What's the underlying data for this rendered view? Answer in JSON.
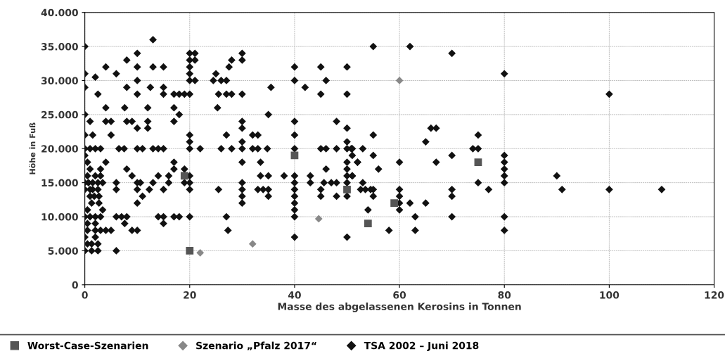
{
  "chart_data": {
    "type": "scatter",
    "xlabel": "Masse des abgelassenen Kerosins in Tonnen",
    "ylabel": "Höhe in Fuß",
    "xlim": [
      0,
      120
    ],
    "xticks": [
      0,
      20,
      40,
      60,
      80,
      100,
      120
    ],
    "ylim": [
      0,
      40000
    ],
    "yticks": [
      {
        "value": 0,
        "label": "0"
      },
      {
        "value": 5000,
        "label": "5.000"
      },
      {
        "value": 10000,
        "label": "10.000"
      },
      {
        "value": 15000,
        "label": "15.000"
      },
      {
        "value": 20000,
        "label": "20.000"
      },
      {
        "value": 25000,
        "label": "25.000"
      },
      {
        "value": 30000,
        "label": "30.000"
      },
      {
        "value": 35000,
        "label": "35.000"
      },
      {
        "value": 40000,
        "label": "40.000"
      }
    ],
    "grid": true,
    "legend": "bottom",
    "series": [
      {
        "name": "Worst-Case-Szenarien",
        "color": "#555555",
        "marker": "square",
        "x": [
          19,
          20,
          40,
          50,
          54,
          59,
          75
        ],
        "values": [
          16000,
          5000,
          19000,
          14000,
          9000,
          12000,
          18000
        ]
      },
      {
        "name": "Szenario „Pfalz 2017“",
        "color": "#888888",
        "marker": "diamond",
        "x": [
          60,
          22,
          32,
          44.6
        ],
        "values": [
          30000,
          4700,
          6000,
          9700
        ]
      },
      {
        "name": "TSA 2002 – Juni 2018",
        "color": "#111111",
        "marker": "diamond",
        "x": [
          13,
          0,
          10,
          20,
          21,
          8,
          20,
          21,
          4,
          10,
          13,
          15,
          20,
          0,
          6,
          2,
          20,
          10,
          20,
          21,
          24.5,
          0,
          8,
          12.5,
          15,
          2.5,
          10,
          15,
          17,
          18,
          19,
          20,
          4,
          7.6,
          12,
          17,
          18,
          0,
          1,
          4,
          5,
          8,
          9,
          12,
          17,
          10,
          12,
          0,
          1.5,
          5,
          20,
          20,
          0,
          1,
          2,
          3,
          6.5,
          7.5,
          10,
          11,
          13,
          14,
          15,
          20,
          22,
          0,
          0.5,
          4,
          17,
          1,
          3,
          8,
          17,
          19,
          0.5,
          2,
          3,
          9,
          14,
          16,
          20,
          0,
          0.7,
          1.5,
          2.5,
          3.4,
          6,
          10,
          10.6,
          13,
          16,
          19,
          20,
          0,
          1,
          1.5,
          2.5,
          6,
          10,
          12.3,
          15,
          20,
          1,
          1.8,
          2.7,
          11,
          1.3,
          2.7,
          10,
          0.5,
          3.4,
          0,
          1,
          2,
          3,
          6,
          7,
          8,
          14,
          15,
          17,
          18,
          20,
          0.5,
          2,
          7.6,
          15,
          0.5,
          2,
          3,
          4,
          5,
          9,
          10,
          0,
          2,
          0.5,
          1.3,
          2.5,
          0,
          1.3,
          2.5,
          6,
          30,
          28,
          30,
          25,
          27.5,
          40,
          45,
          50,
          26,
          27,
          40,
          46,
          35.5,
          42,
          25.5,
          27,
          28,
          30,
          45,
          50,
          25.3,
          35,
          30,
          40,
          48,
          30,
          50,
          27,
          32,
          33,
          40,
          30,
          50,
          26,
          28,
          30,
          32,
          33,
          34.8,
          40,
          45,
          46,
          48,
          50,
          51,
          53,
          51,
          30,
          33.5,
          50,
          52,
          46,
          50,
          33.5,
          35,
          38,
          40,
          43,
          50,
          51,
          30,
          40,
          43,
          45.6,
          47,
          48,
          50,
          53,
          25.5,
          30,
          33,
          34,
          35,
          40,
          45,
          30,
          35,
          40,
          45,
          48,
          50,
          30,
          40,
          40,
          27,
          40,
          27.3,
          40,
          50,
          55,
          62,
          70,
          80,
          100,
          66,
          67,
          55,
          75,
          65,
          74,
          75,
          50.8,
          55,
          70,
          80,
          52,
          60,
          67,
          80,
          56,
          80,
          51,
          80,
          90,
          75,
          80,
          52.6,
          53.5,
          54.5,
          55,
          60,
          70,
          77,
          91,
          100,
          110,
          55,
          60,
          70,
          60,
          62,
          65,
          54,
          60,
          63,
          70,
          80,
          58,
          63,
          80
        ],
        "values": [
          36000,
          35000,
          34000,
          34000,
          34000,
          33000,
          33000,
          33000,
          32000,
          32000,
          32000,
          32000,
          32000,
          31000,
          31000,
          30500,
          31000,
          30000,
          30000,
          30000,
          30000,
          29000,
          29000,
          29000,
          29000,
          28000,
          28000,
          28000,
          28000,
          28000,
          28000,
          28000,
          26000,
          26000,
          26000,
          26000,
          25000,
          25000,
          24000,
          24000,
          24000,
          24000,
          24000,
          24000,
          24000,
          23000,
          23000,
          22000,
          22000,
          22000,
          22000,
          21000,
          20000,
          20000,
          20000,
          20000,
          20000,
          20000,
          20000,
          20000,
          20000,
          20000,
          20000,
          20000,
          20000,
          19000,
          18000,
          18000,
          18000,
          17000,
          17000,
          17000,
          17000,
          17000,
          16000,
          16000,
          16000,
          16000,
          16000,
          16000,
          16000,
          15000,
          15000,
          15000,
          15000,
          15000,
          15000,
          15000,
          15000,
          15000,
          15000,
          15000,
          15000,
          14000,
          14000,
          14000,
          14000,
          14000,
          14000,
          14000,
          14000,
          14000,
          13000,
          13000,
          13000,
          13000,
          12000,
          12000,
          12000,
          11000,
          11000,
          10000,
          10000,
          10000,
          10000,
          10000,
          10000,
          10000,
          10000,
          10000,
          10000,
          10000,
          10000,
          9000,
          9000,
          9000,
          9000,
          8000,
          8000,
          8000,
          8000,
          8000,
          8000,
          8000,
          7000,
          7000,
          6000,
          6000,
          6000,
          5000,
          5000,
          5000,
          5000,
          34000,
          33000,
          33000,
          31000,
          32000,
          32000,
          32000,
          32000,
          30000,
          30000,
          30000,
          30000,
          29000,
          29000,
          28000,
          28000,
          28000,
          28000,
          28000,
          28000,
          26000,
          25000,
          24000,
          24000,
          24000,
          23000,
          23000,
          22000,
          22000,
          22000,
          22000,
          21000,
          21000,
          20000,
          20000,
          20000,
          20000,
          20000,
          20000,
          20000,
          20000,
          20000,
          20000,
          20000,
          20000,
          20000,
          19000,
          18000,
          18000,
          18000,
          18000,
          17000,
          17000,
          16000,
          16000,
          16000,
          16000,
          16000,
          16000,
          16000,
          15000,
          15000,
          15000,
          15000,
          15000,
          15000,
          15000,
          15000,
          14000,
          14000,
          14000,
          14000,
          14000,
          14000,
          14000,
          13000,
          13000,
          13000,
          13000,
          13000,
          13000,
          12000,
          12000,
          11000,
          10000,
          10000,
          8000,
          7000,
          7000,
          35000,
          35000,
          34000,
          31000,
          28000,
          23000,
          23000,
          22000,
          22000,
          21000,
          20000,
          20000,
          20000,
          19000,
          19000,
          19000,
          18000,
          18000,
          18000,
          18000,
          17000,
          17000,
          16000,
          16000,
          16000,
          15000,
          15000,
          14000,
          14000,
          14000,
          14000,
          14000,
          14000,
          14000,
          14000,
          14000,
          14000,
          13000,
          13000,
          13000,
          12000,
          12000,
          12000,
          11000,
          11000,
          10000,
          10000,
          10000,
          8000,
          8000,
          8000
        ]
      }
    ]
  }
}
